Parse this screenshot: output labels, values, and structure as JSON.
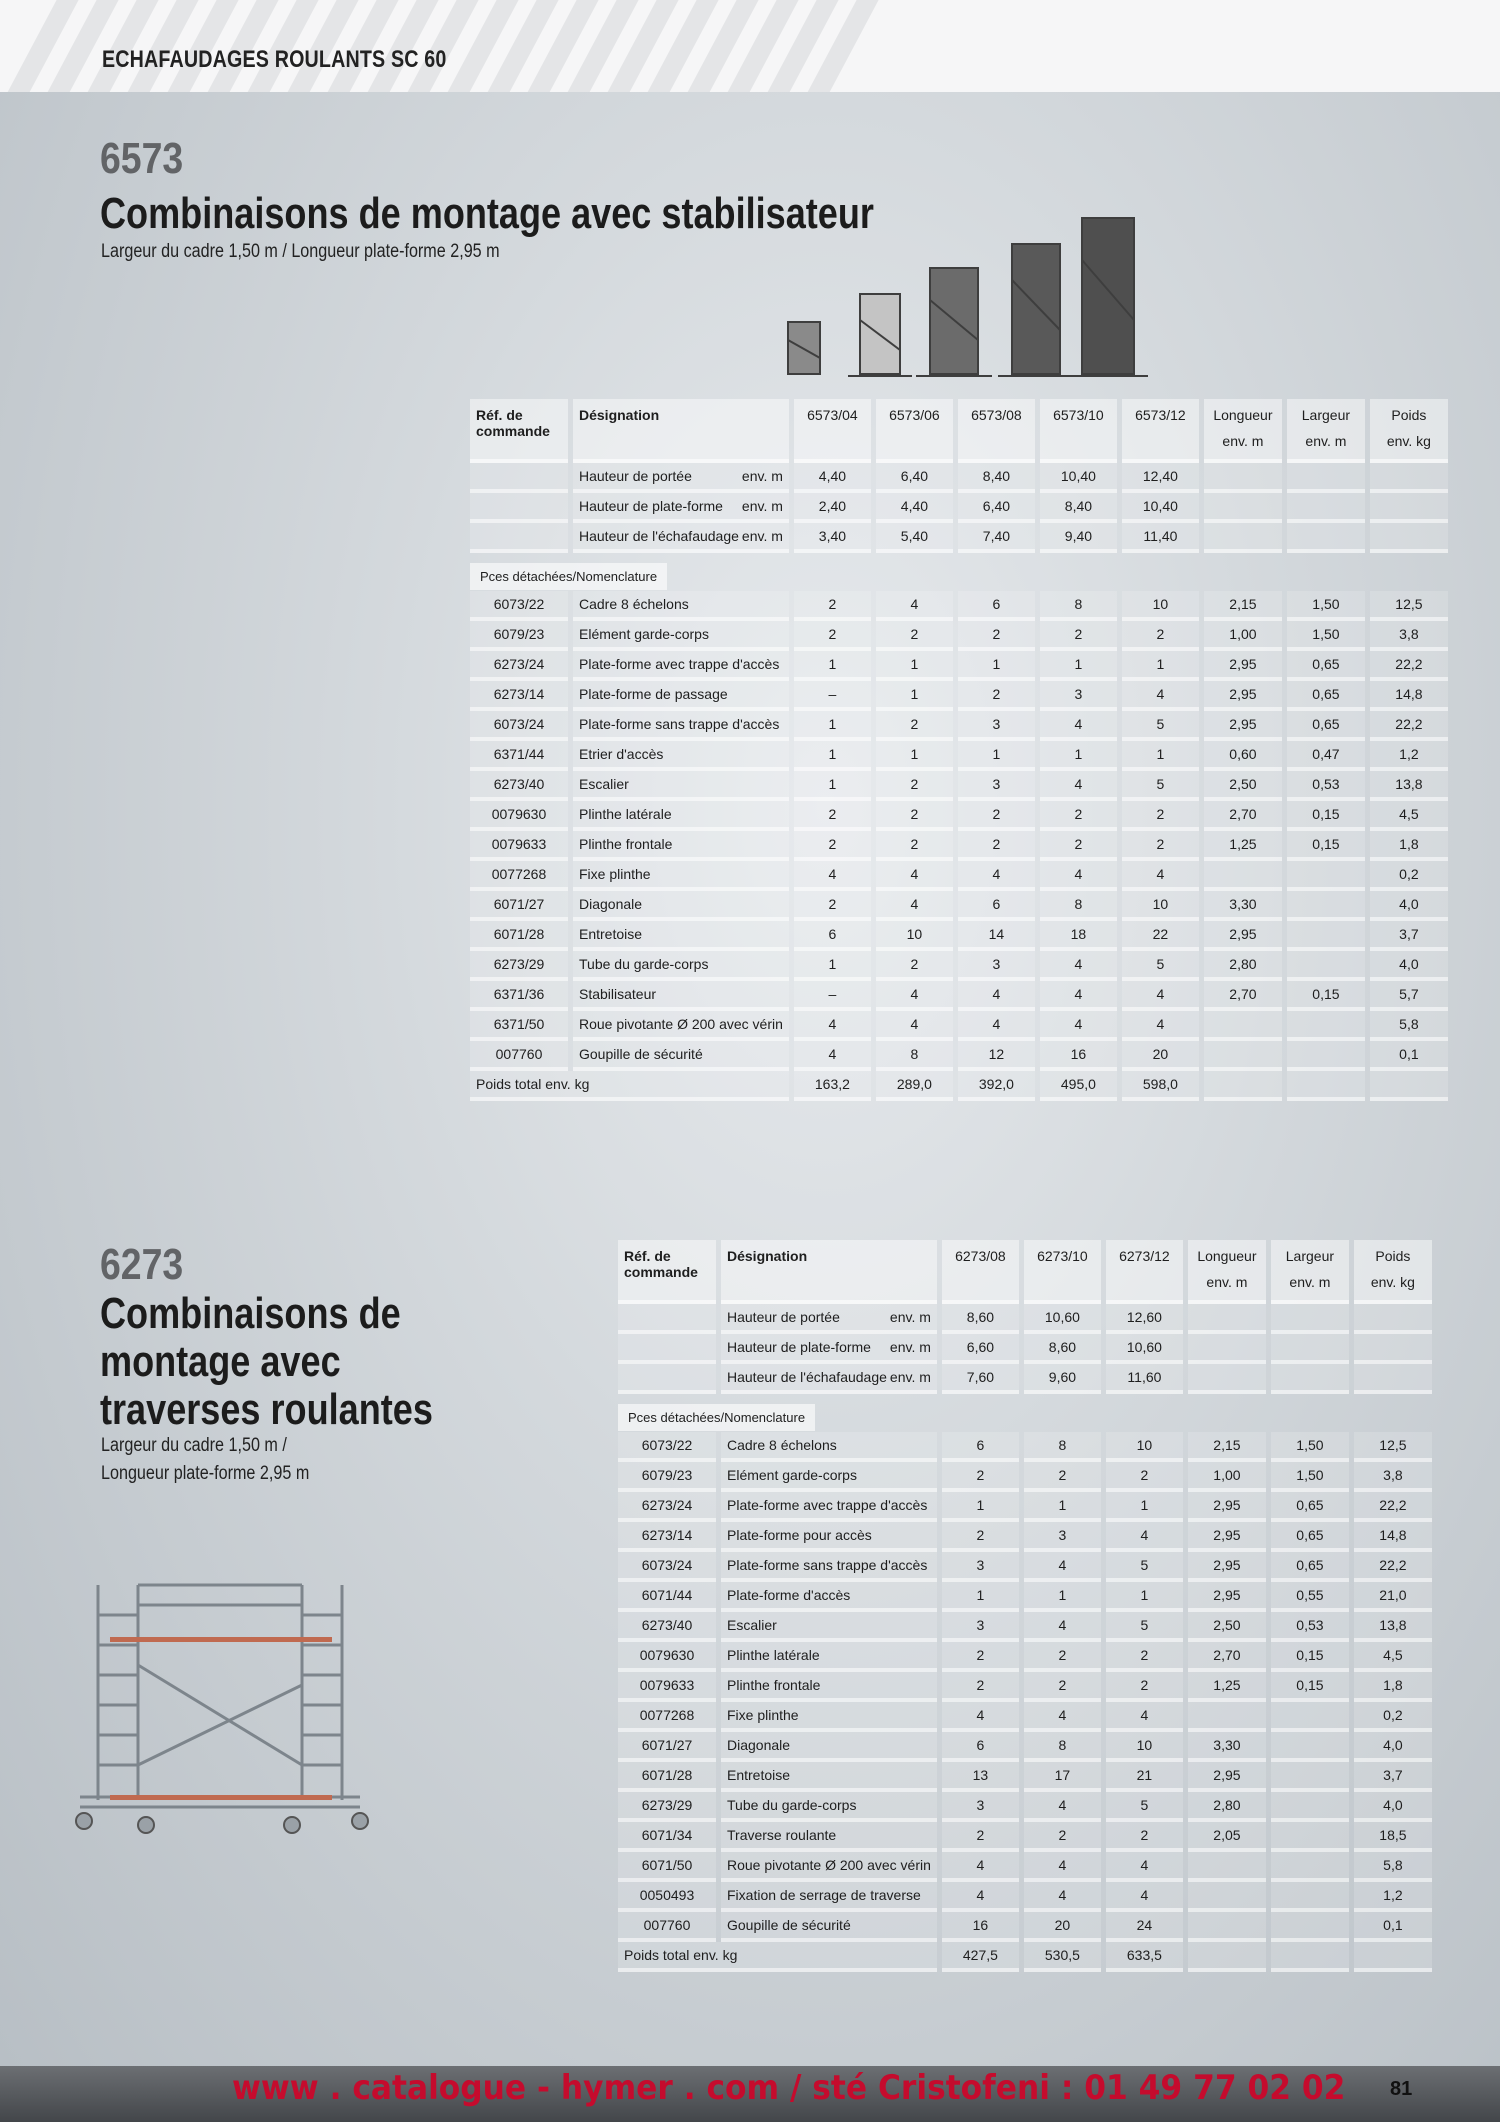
{
  "header": {
    "title": "ECHAFAUDAGES ROULANTS SC 60"
  },
  "section1": {
    "number": "6573",
    "title": "Combinaisons de montage avec stabilisateur",
    "subtitle": "Largeur du cadre 1,50 m / Longueur plate-forme 2,95 m",
    "table": {
      "ref_header": [
        "Réf. de",
        "commande"
      ],
      "designation_header": "Désignation",
      "variants": [
        "6573/04",
        "6573/06",
        "6573/08",
        "6573/10",
        "6573/12"
      ],
      "dim_headers": [
        [
          "Longueur",
          "env. m"
        ],
        [
          "Largeur",
          "env. m"
        ],
        [
          "Poids",
          "env. kg"
        ]
      ],
      "heights": [
        {
          "label": "Hauteur de portée",
          "unit": "env. m",
          "values": [
            "4,40",
            "6,40",
            "8,40",
            "10,40",
            "12,40"
          ]
        },
        {
          "label": "Hauteur de plate-forme",
          "unit": "env. m",
          "values": [
            "2,40",
            "4,40",
            "6,40",
            "8,40",
            "10,40"
          ]
        },
        {
          "label": "Hauteur de l'échafaudage",
          "unit": "env. m",
          "values": [
            "3,40",
            "5,40",
            "7,40",
            "9,40",
            "11,40"
          ]
        }
      ],
      "parts_label": "Pces détachées/Nomenclature",
      "parts": [
        {
          "ref": "6073/22",
          "name": "Cadre 8 échelons",
          "values": [
            "2",
            "4",
            "6",
            "8",
            "10"
          ],
          "length": "2,15",
          "width": "1,50",
          "weight": "12,5"
        },
        {
          "ref": "6079/23",
          "name": "Elément garde-corps",
          "values": [
            "2",
            "2",
            "2",
            "2",
            "2"
          ],
          "length": "1,00",
          "width": "1,50",
          "weight": "3,8"
        },
        {
          "ref": "6273/24",
          "name": "Plate-forme avec trappe d'accès",
          "values": [
            "1",
            "1",
            "1",
            "1",
            "1"
          ],
          "length": "2,95",
          "width": "0,65",
          "weight": "22,2"
        },
        {
          "ref": "6273/14",
          "name": "Plate-forme de passage",
          "values": [
            "–",
            "1",
            "2",
            "3",
            "4"
          ],
          "length": "2,95",
          "width": "0,65",
          "weight": "14,8"
        },
        {
          "ref": "6073/24",
          "name": "Plate-forme sans trappe d'accès",
          "values": [
            "1",
            "2",
            "3",
            "4",
            "5"
          ],
          "length": "2,95",
          "width": "0,65",
          "weight": "22,2"
        },
        {
          "ref": "6371/44",
          "name": "Etrier d'accès",
          "values": [
            "1",
            "1",
            "1",
            "1",
            "1"
          ],
          "length": "0,60",
          "width": "0,47",
          "weight": "1,2"
        },
        {
          "ref": "6273/40",
          "name": "Escalier",
          "values": [
            "1",
            "2",
            "3",
            "4",
            "5"
          ],
          "length": "2,50",
          "width": "0,53",
          "weight": "13,8"
        },
        {
          "ref": "0079630",
          "name": "Plinthe latérale",
          "values": [
            "2",
            "2",
            "2",
            "2",
            "2"
          ],
          "length": "2,70",
          "width": "0,15",
          "weight": "4,5"
        },
        {
          "ref": "0079633",
          "name": "Plinthe frontale",
          "values": [
            "2",
            "2",
            "2",
            "2",
            "2"
          ],
          "length": "1,25",
          "width": "0,15",
          "weight": "1,8"
        },
        {
          "ref": "0077268",
          "name": "Fixe plinthe",
          "values": [
            "4",
            "4",
            "4",
            "4",
            "4"
          ],
          "length": "",
          "width": "",
          "weight": "0,2"
        },
        {
          "ref": "6071/27",
          "name": "Diagonale",
          "values": [
            "2",
            "4",
            "6",
            "8",
            "10"
          ],
          "length": "3,30",
          "width": "",
          "weight": "4,0"
        },
        {
          "ref": "6071/28",
          "name": "Entretoise",
          "values": [
            "6",
            "10",
            "14",
            "18",
            "22"
          ],
          "length": "2,95",
          "width": "",
          "weight": "3,7"
        },
        {
          "ref": "6273/29",
          "name": "Tube du garde-corps",
          "values": [
            "1",
            "2",
            "3",
            "4",
            "5"
          ],
          "length": "2,80",
          "width": "",
          "weight": "4,0"
        },
        {
          "ref": "6371/36",
          "name": "Stabilisateur",
          "values": [
            "–",
            "4",
            "4",
            "4",
            "4"
          ],
          "length": "2,70",
          "width": "0,15",
          "weight": "5,7"
        },
        {
          "ref": "6371/50",
          "name": "Roue pivotante Ø 200 avec vérin",
          "values": [
            "4",
            "4",
            "4",
            "4",
            "4"
          ],
          "length": "",
          "width": "",
          "weight": "5,8"
        },
        {
          "ref": "007760",
          "name": "Goupille de sécurité",
          "values": [
            "4",
            "8",
            "12",
            "16",
            "20"
          ],
          "length": "",
          "width": "",
          "weight": "0,1"
        }
      ],
      "total_label": "Poids total env. kg",
      "totals": [
        "163,2",
        "289,0",
        "392,0",
        "495,0",
        "598,0"
      ]
    }
  },
  "section2": {
    "number": "6273",
    "title_lines": [
      "Combinaisons de",
      "montage avec",
      "traverses roulantes"
    ],
    "subtitle_lines": [
      "Largeur du cadre 1,50 m /",
      "Longueur plate-forme 2,95 m"
    ],
    "table": {
      "ref_header": [
        "Réf. de",
        "commande"
      ],
      "designation_header": "Désignation",
      "variants": [
        "6273/08",
        "6273/10",
        "6273/12"
      ],
      "dim_headers": [
        [
          "Longueur",
          "env. m"
        ],
        [
          "Largeur",
          "env. m"
        ],
        [
          "Poids",
          "env. kg"
        ]
      ],
      "heights": [
        {
          "label": "Hauteur de portée",
          "unit": "env. m",
          "values": [
            "8,60",
            "10,60",
            "12,60"
          ]
        },
        {
          "label": "Hauteur de plate-forme",
          "unit": "env. m",
          "values": [
            "6,60",
            "8,60",
            "10,60"
          ]
        },
        {
          "label": "Hauteur de l'échafaudage",
          "unit": "env. m",
          "values": [
            "7,60",
            "9,60",
            "11,60"
          ]
        }
      ],
      "parts_label": "Pces détachées/Nomenclature",
      "parts": [
        {
          "ref": "6073/22",
          "name": "Cadre 8 échelons",
          "values": [
            "6",
            "8",
            "10"
          ],
          "length": "2,15",
          "width": "1,50",
          "weight": "12,5"
        },
        {
          "ref": "6079/23",
          "name": "Elément garde-corps",
          "values": [
            "2",
            "2",
            "2"
          ],
          "length": "1,00",
          "width": "1,50",
          "weight": "3,8"
        },
        {
          "ref": "6273/24",
          "name": "Plate-forme avec trappe d'accès",
          "values": [
            "1",
            "1",
            "1"
          ],
          "length": "2,95",
          "width": "0,65",
          "weight": "22,2"
        },
        {
          "ref": "6273/14",
          "name": "Plate-forme pour accès",
          "values": [
            "2",
            "3",
            "4"
          ],
          "length": "2,95",
          "width": "0,65",
          "weight": "14,8"
        },
        {
          "ref": "6073/24",
          "name": "Plate-forme sans trappe d'accès",
          "values": [
            "3",
            "4",
            "5"
          ],
          "length": "2,95",
          "width": "0,65",
          "weight": "22,2"
        },
        {
          "ref": "6071/44",
          "name": "Plate-forme d'accès",
          "values": [
            "1",
            "1",
            "1"
          ],
          "length": "2,95",
          "width": "0,55",
          "weight": "21,0"
        },
        {
          "ref": "6273/40",
          "name": "Escalier",
          "values": [
            "3",
            "4",
            "5"
          ],
          "length": "2,50",
          "width": "0,53",
          "weight": "13,8"
        },
        {
          "ref": "0079630",
          "name": "Plinthe latérale",
          "values": [
            "2",
            "2",
            "2"
          ],
          "length": "2,70",
          "width": "0,15",
          "weight": "4,5"
        },
        {
          "ref": "0079633",
          "name": "Plinthe frontale",
          "values": [
            "2",
            "2",
            "2"
          ],
          "length": "1,25",
          "width": "0,15",
          "weight": "1,8"
        },
        {
          "ref": "0077268",
          "name": "Fixe plinthe",
          "values": [
            "4",
            "4",
            "4"
          ],
          "length": "",
          "width": "",
          "weight": "0,2"
        },
        {
          "ref": "6071/27",
          "name": "Diagonale",
          "values": [
            "6",
            "8",
            "10"
          ],
          "length": "3,30",
          "width": "",
          "weight": "4,0"
        },
        {
          "ref": "6071/28",
          "name": "Entretoise",
          "values": [
            "13",
            "17",
            "21"
          ],
          "length": "2,95",
          "width": "",
          "weight": "3,7"
        },
        {
          "ref": "6273/29",
          "name": "Tube du garde-corps",
          "values": [
            "3",
            "4",
            "5"
          ],
          "length": "2,80",
          "width": "",
          "weight": "4,0"
        },
        {
          "ref": "6071/34",
          "name": "Traverse roulante",
          "values": [
            "2",
            "2",
            "2"
          ],
          "length": "2,05",
          "width": "",
          "weight": "18,5"
        },
        {
          "ref": "6071/50",
          "name": "Roue pivotante Ø 200 avec vérin",
          "values": [
            "4",
            "4",
            "4"
          ],
          "length": "",
          "width": "",
          "weight": "5,8"
        },
        {
          "ref": "0050493",
          "name": "Fixation de serrage de traverse",
          "values": [
            "4",
            "4",
            "4"
          ],
          "length": "",
          "width": "",
          "weight": "1,2"
        },
        {
          "ref": "007760",
          "name": "Goupille de sécurité",
          "values": [
            "16",
            "20",
            "24"
          ],
          "length": "",
          "width": "",
          "weight": "0,1"
        }
      ],
      "total_label": "Poids total env. kg",
      "totals": [
        "427,5",
        "530,5",
        "633,5"
      ]
    }
  },
  "footer": {
    "url_text": "www . catalogue - hymer . com / sté Cristofeni : 01 49 77 02 02",
    "page_number": "81"
  },
  "colors": {
    "footer_text": "#c50b2d",
    "section_number": "#626467",
    "background": "#c7cdd2"
  }
}
